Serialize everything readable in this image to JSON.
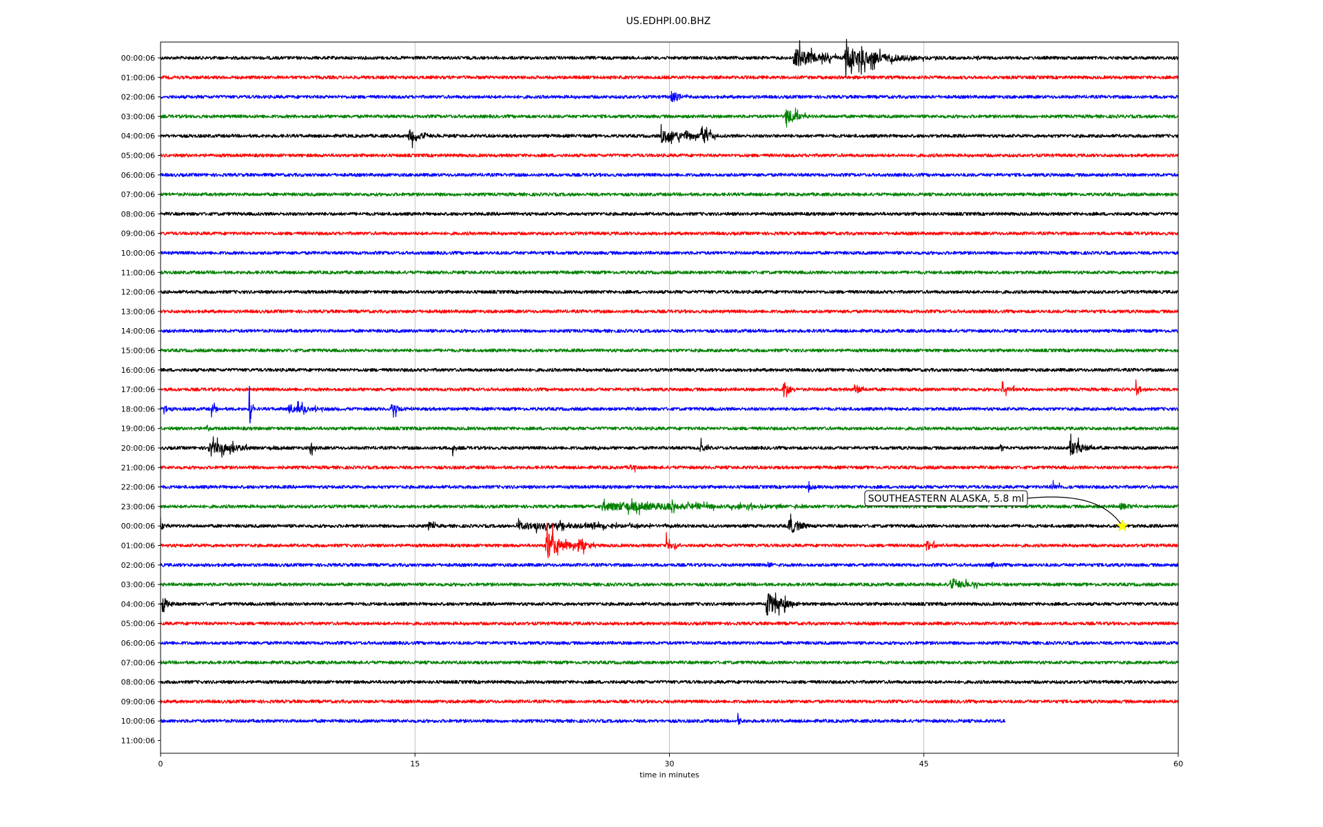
{
  "chart_data": {
    "type": "line",
    "title": "US.EDHPI.00.BHZ",
    "xlabel": "time in minutes",
    "ylabel": "",
    "xlim": [
      0,
      60
    ],
    "x_ticks": [
      0,
      15,
      30,
      45,
      60
    ],
    "grid": "vertical lines at 15, 30, 45",
    "trace_colors": [
      "#000000",
      "#ff0000",
      "#0000ff",
      "#008000"
    ],
    "rows": [
      {
        "label": "00:00:06",
        "color": "#000000",
        "events": [
          {
            "t": 37.3,
            "amp": 1.0,
            "dur": 3.5
          },
          {
            "t": 40.3,
            "amp": 1.1,
            "dur": 5.5
          },
          {
            "t": 47.9,
            "amp": 0.3,
            "dur": 0.6
          }
        ]
      },
      {
        "label": "01:00:06",
        "color": "#ff0000",
        "events": []
      },
      {
        "label": "02:00:06",
        "color": "#0000ff",
        "events": [
          {
            "t": 30.1,
            "amp": 0.7,
            "dur": 1.2
          }
        ]
      },
      {
        "label": "03:00:06",
        "color": "#008000",
        "events": [
          {
            "t": 36.8,
            "amp": 0.9,
            "dur": 1.6
          }
        ]
      },
      {
        "label": "04:00:06",
        "color": "#000000",
        "events": [
          {
            "t": 14.6,
            "amp": 0.7,
            "dur": 2.0
          },
          {
            "t": 29.5,
            "amp": 0.8,
            "dur": 3.5
          },
          {
            "t": 31.8,
            "amp": 1.3,
            "dur": 1.0
          }
        ]
      },
      {
        "label": "05:00:06",
        "color": "#ff0000",
        "events": []
      },
      {
        "label": "06:00:06",
        "color": "#0000ff",
        "events": []
      },
      {
        "label": "07:00:06",
        "color": "#008000",
        "events": []
      },
      {
        "label": "08:00:06",
        "color": "#000000",
        "events": []
      },
      {
        "label": "09:00:06",
        "color": "#ff0000",
        "events": []
      },
      {
        "label": "10:00:06",
        "color": "#0000ff",
        "events": []
      },
      {
        "label": "11:00:06",
        "color": "#008000",
        "events": []
      },
      {
        "label": "12:00:06",
        "color": "#000000",
        "events": []
      },
      {
        "label": "13:00:06",
        "color": "#ff0000",
        "events": []
      },
      {
        "label": "14:00:06",
        "color": "#0000ff",
        "events": []
      },
      {
        "label": "15:00:06",
        "color": "#008000",
        "events": []
      },
      {
        "label": "16:00:06",
        "color": "#000000",
        "events": []
      },
      {
        "label": "17:00:06",
        "color": "#ff0000",
        "events": [
          {
            "t": 36.7,
            "amp": 1.3,
            "dur": 0.7
          },
          {
            "t": 40.9,
            "amp": 0.6,
            "dur": 1.0
          },
          {
            "t": 49.6,
            "amp": 0.5,
            "dur": 1.5
          },
          {
            "t": 57.5,
            "amp": 0.7,
            "dur": 0.6
          }
        ]
      },
      {
        "label": "18:00:06",
        "color": "#0000ff",
        "events": [
          {
            "t": 0.2,
            "amp": 0.6,
            "dur": 0.6
          },
          {
            "t": 3.0,
            "amp": 0.6,
            "dur": 0.5
          },
          {
            "t": 5.2,
            "amp": 3.0,
            "dur": 0.3
          },
          {
            "t": 7.5,
            "amp": 0.5,
            "dur": 3.5
          },
          {
            "t": 13.6,
            "amp": 0.5,
            "dur": 1.6
          }
        ]
      },
      {
        "label": "19:00:06",
        "color": "#008000",
        "events": [
          {
            "t": 2.7,
            "amp": 0.4,
            "dur": 0.4
          }
        ]
      },
      {
        "label": "20:00:06",
        "color": "#000000",
        "events": [
          {
            "t": 2.8,
            "amp": 0.6,
            "dur": 5.0
          },
          {
            "t": 8.8,
            "amp": 0.7,
            "dur": 0.6
          },
          {
            "t": 17.2,
            "amp": 0.5,
            "dur": 0.5
          },
          {
            "t": 25.6,
            "amp": 0.4,
            "dur": 0.8
          },
          {
            "t": 31.8,
            "amp": 0.6,
            "dur": 0.8
          },
          {
            "t": 49.5,
            "amp": 0.5,
            "dur": 0.6
          },
          {
            "t": 53.6,
            "amp": 0.8,
            "dur": 2.0
          }
        ]
      },
      {
        "label": "21:00:06",
        "color": "#ff0000",
        "events": [
          {
            "t": 27.7,
            "amp": 0.4,
            "dur": 1.0
          }
        ]
      },
      {
        "label": "22:00:06",
        "color": "#0000ff",
        "events": [
          {
            "t": 38.2,
            "amp": 0.4,
            "dur": 0.7
          },
          {
            "t": 52.5,
            "amp": 0.4,
            "dur": 1.5
          }
        ]
      },
      {
        "label": "23:00:06",
        "color": "#008000",
        "events": [
          {
            "t": 26.0,
            "amp": 0.5,
            "dur": 18.0
          },
          {
            "t": 30.1,
            "amp": 0.6,
            "dur": 0.5
          },
          {
            "t": 56.5,
            "amp": 0.4,
            "dur": 2.5
          }
        ]
      },
      {
        "label": "00:00:06",
        "color": "#000000",
        "events": [
          {
            "t": 0.0,
            "amp": 0.5,
            "dur": 0.6
          },
          {
            "t": 15.8,
            "amp": 0.5,
            "dur": 0.8
          },
          {
            "t": 21.0,
            "amp": 0.4,
            "dur": 15.0
          },
          {
            "t": 37.0,
            "amp": 0.9,
            "dur": 1.8
          }
        ]
      },
      {
        "label": "01:00:06",
        "color": "#ff0000",
        "events": [
          {
            "t": 22.7,
            "amp": 1.5,
            "dur": 2.0
          },
          {
            "t": 24.6,
            "amp": 0.8,
            "dur": 1.2
          },
          {
            "t": 29.8,
            "amp": 0.7,
            "dur": 1.0
          },
          {
            "t": 45.1,
            "amp": 0.6,
            "dur": 1.2
          }
        ]
      },
      {
        "label": "02:00:06",
        "color": "#0000ff",
        "events": [
          {
            "t": 35.8,
            "amp": 0.4,
            "dur": 0.8
          },
          {
            "t": 49.0,
            "amp": 0.4,
            "dur": 0.5
          },
          {
            "t": 55.8,
            "amp": 0.3,
            "dur": 0.5
          }
        ]
      },
      {
        "label": "03:00:06",
        "color": "#008000",
        "events": [
          {
            "t": 46.5,
            "amp": 0.5,
            "dur": 3.5
          }
        ]
      },
      {
        "label": "04:00:06",
        "color": "#000000",
        "events": [
          {
            "t": 0.1,
            "amp": 0.9,
            "dur": 0.8
          },
          {
            "t": 6.7,
            "amp": 0.3,
            "dur": 0.3
          },
          {
            "t": 35.7,
            "amp": 1.3,
            "dur": 2.0
          }
        ]
      },
      {
        "label": "05:00:06",
        "color": "#ff0000",
        "events": []
      },
      {
        "label": "06:00:06",
        "color": "#0000ff",
        "events": []
      },
      {
        "label": "07:00:06",
        "color": "#008000",
        "events": []
      },
      {
        "label": "08:00:06",
        "color": "#000000",
        "events": []
      },
      {
        "label": "09:00:06",
        "color": "#ff0000",
        "events": []
      },
      {
        "label": "10:00:06",
        "color": "#0000ff",
        "end": 49.8,
        "events": [
          {
            "t": 34.0,
            "amp": 0.7,
            "dur": 0.5
          }
        ]
      },
      {
        "label": "11:00:06",
        "color": "#0000ff",
        "end": 0,
        "events": []
      }
    ],
    "annotations": [
      {
        "text": "SOUTHEASTERN ALASKA, 5.8 ml",
        "row": 24,
        "t": 56.7,
        "marker": "star",
        "marker_color": "#ffff00"
      }
    ]
  }
}
